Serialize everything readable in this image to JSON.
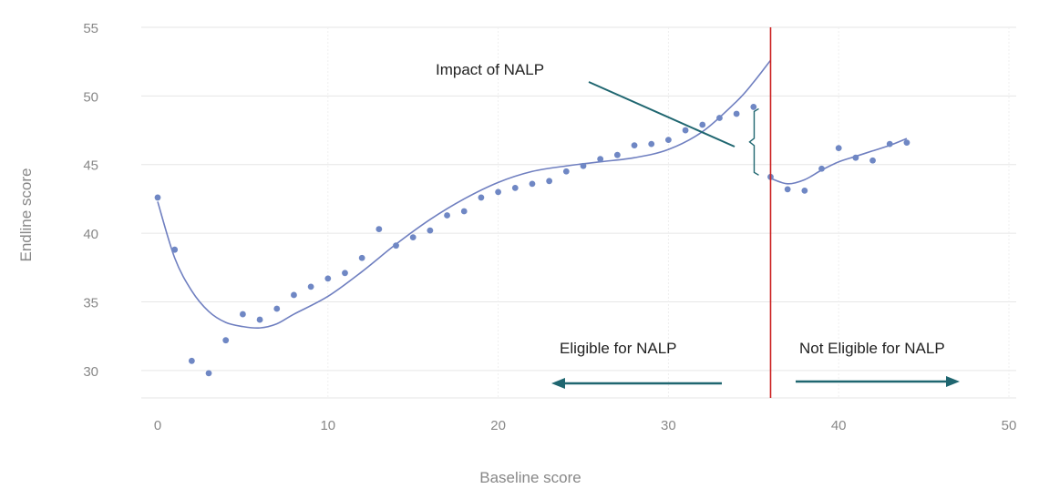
{
  "chart_data": {
    "type": "scatter",
    "xlabel": "Baseline score",
    "ylabel": "Endline score",
    "xlim": [
      0,
      50
    ],
    "ylim": [
      28,
      55
    ],
    "x_ticks": [
      0,
      10,
      20,
      30,
      40,
      50
    ],
    "y_ticks": [
      30,
      35,
      40,
      45,
      50,
      55
    ],
    "grid": true,
    "cutoff": 36,
    "points": [
      [
        0,
        42.6
      ],
      [
        1,
        38.8
      ],
      [
        2,
        30.7
      ],
      [
        3,
        29.8
      ],
      [
        4,
        32.2
      ],
      [
        5,
        34.1
      ],
      [
        6,
        33.7
      ],
      [
        7,
        34.5
      ],
      [
        8,
        35.5
      ],
      [
        9,
        36.1
      ],
      [
        10,
        36.7
      ],
      [
        11,
        37.1
      ],
      [
        12,
        38.2
      ],
      [
        13,
        40.3
      ],
      [
        14,
        39.1
      ],
      [
        15,
        39.7
      ],
      [
        16,
        40.2
      ],
      [
        17,
        41.3
      ],
      [
        18,
        41.6
      ],
      [
        19,
        42.6
      ],
      [
        20,
        43.0
      ],
      [
        21,
        43.3
      ],
      [
        22,
        43.6
      ],
      [
        23,
        43.8
      ],
      [
        24,
        44.5
      ],
      [
        25,
        44.9
      ],
      [
        26,
        45.4
      ],
      [
        27,
        45.7
      ],
      [
        28,
        46.4
      ],
      [
        29,
        46.5
      ],
      [
        30,
        46.8
      ],
      [
        31,
        47.5
      ],
      [
        32,
        47.9
      ],
      [
        33,
        48.4
      ],
      [
        34,
        48.7
      ],
      [
        35,
        49.2
      ],
      [
        36,
        44.1
      ],
      [
        37,
        43.2
      ],
      [
        38,
        43.1
      ],
      [
        39,
        44.7
      ],
      [
        40,
        46.2
      ],
      [
        41,
        45.5
      ],
      [
        42,
        45.3
      ],
      [
        43,
        46.5
      ],
      [
        44,
        46.6
      ]
    ],
    "fit_left": [
      [
        0,
        42.3
      ],
      [
        1,
        38.2
      ],
      [
        2,
        35.8
      ],
      [
        3,
        34.3
      ],
      [
        4,
        33.5
      ],
      [
        5,
        33.2
      ],
      [
        6,
        33.1
      ],
      [
        7,
        33.4
      ],
      [
        8,
        34.1
      ],
      [
        10,
        35.4
      ],
      [
        12,
        37.2
      ],
      [
        14,
        39.2
      ],
      [
        16,
        41.0
      ],
      [
        18,
        42.5
      ],
      [
        20,
        43.7
      ],
      [
        22,
        44.5
      ],
      [
        24,
        44.9
      ],
      [
        26,
        45.2
      ],
      [
        28,
        45.5
      ],
      [
        30,
        46.1
      ],
      [
        32,
        47.4
      ],
      [
        34,
        49.6
      ],
      [
        35,
        51.0
      ],
      [
        36,
        52.6
      ]
    ],
    "fit_right": [
      [
        36,
        44.0
      ],
      [
        37,
        43.6
      ],
      [
        38,
        43.9
      ],
      [
        39,
        44.6
      ],
      [
        40,
        45.2
      ],
      [
        41,
        45.6
      ],
      [
        42,
        46.0
      ],
      [
        43,
        46.4
      ],
      [
        44,
        46.9
      ]
    ],
    "annotations": {
      "impact": "Impact of NALP",
      "eligible": "Eligible for NALP",
      "not_eligible": "Not Eligible for NALP"
    },
    "colors": {
      "points": "#6f87c4",
      "fit": "#6f7fc0",
      "cutoff": "#cc2222",
      "arrow": "#1f6670",
      "grid": "#e6e6e6"
    }
  }
}
